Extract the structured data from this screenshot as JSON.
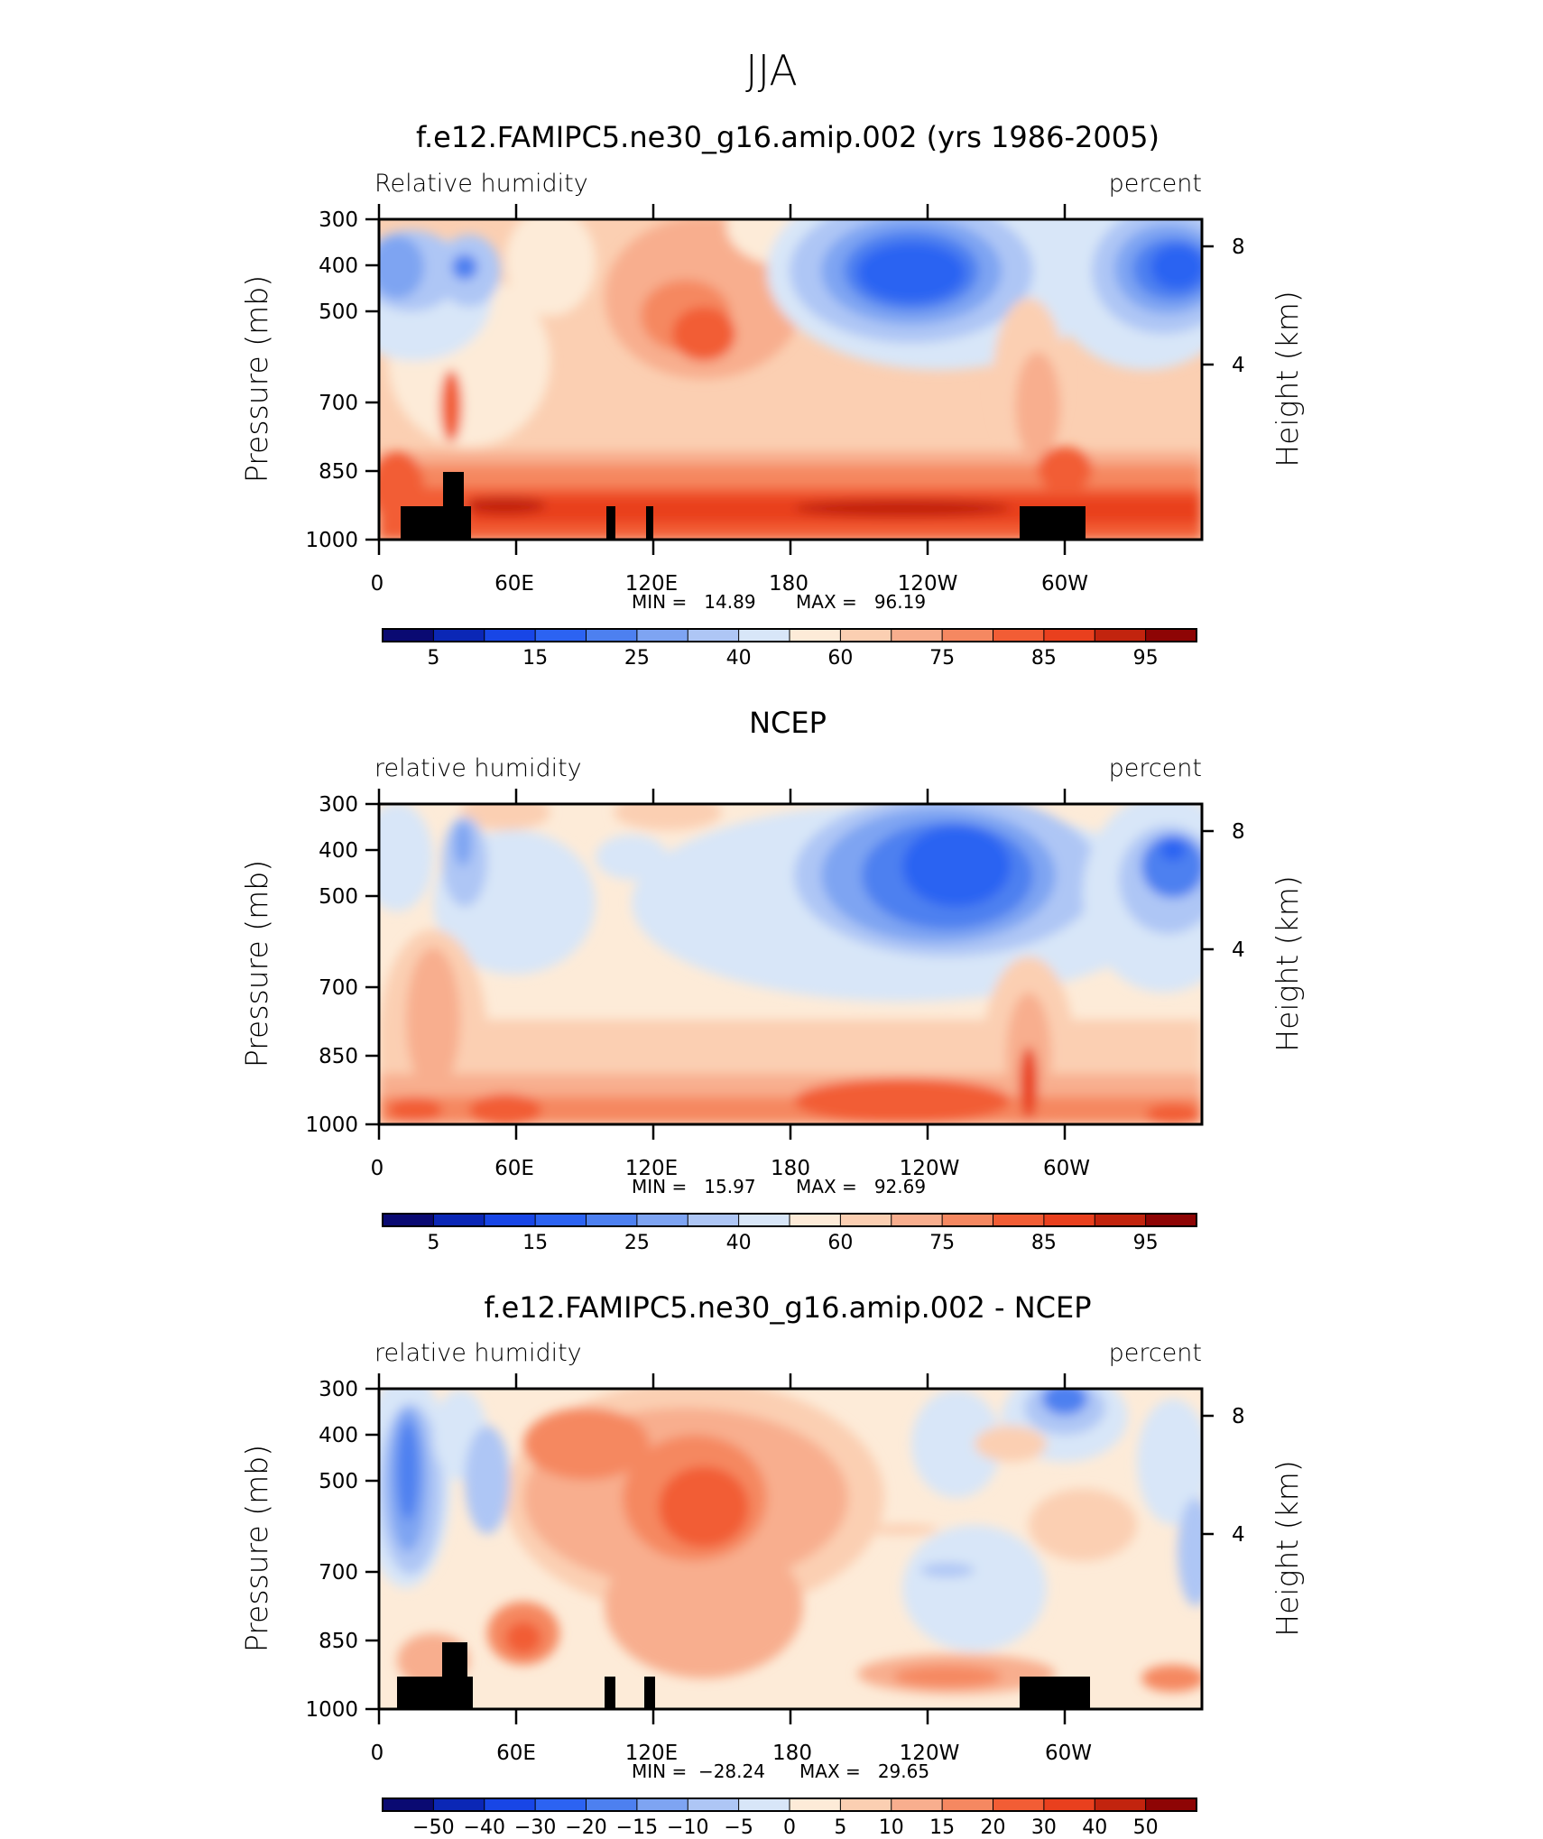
{
  "figure": {
    "season_title": "JJA",
    "x_tick_labels": [
      "0",
      "60E",
      "120E",
      "180",
      "120W",
      "60W"
    ],
    "y_tick_labels": [
      "300",
      "400",
      "500",
      "700",
      "850",
      "1000"
    ],
    "right_tick_labels": [
      "8",
      "4"
    ],
    "left_axis_title": "Pressure (mb)",
    "right_axis_title": "Height (km)"
  },
  "chart_data": [
    {
      "type": "heatmap",
      "title": "f.e12.FAMIPC5.ne30_g16.amip.002 (yrs 1986-2005)",
      "field_label": "Relative humidity",
      "units_label": "percent",
      "min_text": "MIN =   14.89",
      "max_text": "MAX =   96.19",
      "min": 14.89,
      "max": 96.19,
      "xlabel": "",
      "ylabel": "Pressure (mb)",
      "y2label": "Height (km)",
      "x_ticks": [
        "0",
        "60E",
        "120E",
        "180",
        "120W",
        "60W"
      ],
      "y_ticks": [
        300,
        400,
        500,
        700,
        850,
        1000
      ],
      "levels": [
        5,
        10,
        15,
        20,
        25,
        30,
        40,
        50,
        60,
        65,
        75,
        80,
        85,
        90,
        95
      ],
      "colorbar_labels": [
        "5",
        "15",
        "25",
        "40",
        "60",
        "75",
        "85",
        "95"
      ],
      "colors": [
        "#0a0a72",
        "#0b27b6",
        "#1846e6",
        "#2c63f2",
        "#4d80f0",
        "#7ea4f2",
        "#aec6f5",
        "#d8e6f8",
        "#fdebd8",
        "#fbcfb2",
        "#f8ae8e",
        "#f58861",
        "#f25d35",
        "#e9401e",
        "#c2240e",
        "#8e0505"
      ]
    },
    {
      "type": "heatmap",
      "title": "NCEP",
      "field_label": "relative humidity",
      "units_label": "percent",
      "min_text": "MIN =   15.97",
      "max_text": "MAX =   92.69",
      "min": 15.97,
      "max": 92.69,
      "xlabel": "",
      "ylabel": "Pressure (mb)",
      "y2label": "Height (km)",
      "x_ticks": [
        "0",
        "60E",
        "120E",
        "180",
        "120W",
        "60W"
      ],
      "y_ticks": [
        300,
        400,
        500,
        700,
        850,
        1000
      ],
      "levels": [
        5,
        10,
        15,
        20,
        25,
        30,
        40,
        50,
        60,
        65,
        75,
        80,
        85,
        90,
        95
      ],
      "colorbar_labels": [
        "5",
        "15",
        "25",
        "40",
        "60",
        "75",
        "85",
        "95"
      ],
      "colors": [
        "#0a0a72",
        "#0b27b6",
        "#1846e6",
        "#2c63f2",
        "#4d80f0",
        "#7ea4f2",
        "#aec6f5",
        "#d8e6f8",
        "#fdebd8",
        "#fbcfb2",
        "#f8ae8e",
        "#f58861",
        "#f25d35",
        "#e9401e",
        "#c2240e",
        "#8e0505"
      ]
    },
    {
      "type": "heatmap",
      "title": "f.e12.FAMIPC5.ne30_g16.amip.002 - NCEP",
      "field_label": "relative humidity",
      "units_label": "percent",
      "min_text": "MIN =  −28.24",
      "max_text": "MAX =   29.65",
      "min": -28.24,
      "max": 29.65,
      "xlabel": "",
      "ylabel": "Pressure (mb)",
      "y2label": "Height (km)",
      "x_ticks": [
        "0",
        "60E",
        "120E",
        "180",
        "120W",
        "60W"
      ],
      "y_ticks": [
        300,
        400,
        500,
        700,
        850,
        1000
      ],
      "levels": [
        -50,
        -40,
        -30,
        -20,
        -15,
        -10,
        -5,
        0,
        5,
        10,
        15,
        20,
        30,
        40,
        50
      ],
      "colorbar_labels": [
        "−50",
        "−40",
        "−30",
        "−20",
        "−15",
        "−10",
        "−5",
        "0",
        "5",
        "10",
        "15",
        "20",
        "30",
        "40",
        "50"
      ],
      "colors": [
        "#0a0a72",
        "#0b27b6",
        "#1846e6",
        "#2c63f2",
        "#4d80f0",
        "#7ea4f2",
        "#aec6f5",
        "#d8e6f8",
        "#fdebd8",
        "#fbcfb2",
        "#f8ae8e",
        "#f58861",
        "#f25d35",
        "#e9401e",
        "#c2240e",
        "#8e0505"
      ]
    }
  ]
}
